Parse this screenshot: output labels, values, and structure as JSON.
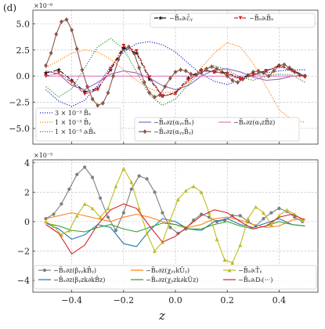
{
  "figure": {
    "panel_label": "(d)",
    "xlabel": "z"
  },
  "chart_data": [
    {
      "type": "line",
      "id": "top",
      "exponent_label": "×10⁻⁶",
      "xlim": [
        -0.55,
        0.55
      ],
      "ylim": [
        -6.5,
        6.3
      ],
      "xticks": [
        -0.4,
        -0.2,
        0.0,
        0.2,
        0.4
      ],
      "yticks": [
        -5.0,
        -2.5,
        0.0,
        2.5,
        5.0
      ],
      "ytick_labels": [
        "−5.0",
        "−2.5",
        "0.0",
        "2.5",
        "5.0"
      ],
      "grid": true,
      "legends": [
        {
          "position": "top-right",
          "ncol": 2,
          "entries": [
            "−B̄ₓ∂ₜℰ̄ᵧ",
            "−B̄ₓ∂ₜB̄ₓ"
          ]
        },
        {
          "position": "bottom-left",
          "ncol": 1,
          "entries": [
            "3 × 10⁻³ B̄ₓ",
            "1 × 10⁻³ B̄ᵧ",
            "1 × 10⁻³ ∂ₜB̄ₓ"
          ]
        },
        {
          "position": "bottom-center",
          "ncol": 2,
          "entries": [
            "−B̄ₓ∂z(αᵧₓB̄ₓ)",
            "−B̄ₓ∂z(αᵧzB̄z)",
            "−B̄ₓ∂z(αᵧᵧB̄ᵧ)"
          ]
        }
      ],
      "series": [
        {
          "name": "3 × 10⁻³ B̄ₓ",
          "color": "#1f1fd0",
          "style": "dotted",
          "marker": "none",
          "x": [
            -0.5,
            -0.45,
            -0.4,
            -0.35,
            -0.3,
            -0.25,
            -0.2,
            -0.15,
            -0.1,
            -0.05,
            0,
            0.05,
            0.1,
            0.15,
            0.2,
            0.25,
            0.3,
            0.35,
            0.4,
            0.45,
            0.5
          ],
          "y": [
            -1.3,
            -2.4,
            -2.9,
            -2.3,
            -0.9,
            0.9,
            2.3,
            3.1,
            3.3,
            3.0,
            2.3,
            1.2,
            0.2,
            -0.5,
            -0.8,
            -0.4,
            0.1,
            0.3,
            0.5,
            0.6,
            0.6
          ]
        },
        {
          "name": "1 × 10⁻³ B̄ᵧ",
          "color": "#ff7f0e",
          "style": "dotted",
          "marker": "none",
          "x": [
            -0.5,
            -0.45,
            -0.4,
            -0.35,
            -0.3,
            -0.25,
            -0.2,
            -0.15,
            -0.1,
            -0.05,
            0,
            0.05,
            0.1,
            0.15,
            0.2,
            0.25,
            0.3,
            0.35,
            0.4,
            0.45,
            0.5
          ],
          "y": [
            0.8,
            1.5,
            2.2,
            2.5,
            2.3,
            1.6,
            0.6,
            -0.4,
            -1.2,
            -1.6,
            -1.5,
            -0.6,
            0.8,
            2.2,
            3.2,
            2.8,
            1.2,
            -1.0,
            -3.2,
            -4.2,
            -4.4
          ]
        },
        {
          "name": "1 × 10⁻³ ∂ₜB̄ₓ",
          "color": "#228b22",
          "style": "dotted",
          "marker": "none",
          "x": [
            -0.5,
            -0.45,
            -0.4,
            -0.35,
            -0.3,
            -0.25,
            -0.2,
            -0.15,
            -0.1,
            -0.05,
            0,
            0.05,
            0.1,
            0.15,
            0.2,
            0.25,
            0.3,
            0.35,
            0.4,
            0.45,
            0.5
          ],
          "y": [
            -1.0,
            -2.0,
            -1.2,
            0.8,
            2.8,
            3.6,
            2.6,
            0.4,
            -1.8,
            -2.8,
            -2.2,
            -0.8,
            0.6,
            1.0,
            0.6,
            -0.1,
            -0.4,
            0.0,
            0.2,
            0.1,
            -0.6
          ]
        },
        {
          "name": "−B̄ₓ∂z(αᵧₓB̄ₓ)",
          "color": "#9467bd",
          "style": "solid",
          "marker": "none",
          "x": [
            -0.5,
            -0.45,
            -0.4,
            -0.35,
            -0.3,
            -0.25,
            -0.2,
            -0.15,
            -0.1,
            -0.05,
            0,
            0.05,
            0.1,
            0.15,
            0.2,
            0.25,
            0.3,
            0.35,
            0.4,
            0.45,
            0.5
          ],
          "y": [
            0.5,
            0.2,
            -0.9,
            -1.3,
            -0.6,
            0.2,
            0.5,
            0.3,
            -0.2,
            -0.9,
            -1.3,
            -0.9,
            0.0,
            0.6,
            0.7,
            0.4,
            -0.1,
            -0.4,
            -0.3,
            0.0,
            0.1
          ]
        },
        {
          "name": "−B̄ₓ∂z(αᵧzB̄z)",
          "color": "#e377c2",
          "style": "solid",
          "marker": "none",
          "x": [
            -0.5,
            -0.4,
            -0.3,
            -0.2,
            -0.1,
            0,
            0.1,
            0.2,
            0.3,
            0.4,
            0.5
          ],
          "y": [
            0.0,
            0.0,
            0.0,
            0.0,
            0.0,
            0.0,
            0.0,
            0.0,
            0.0,
            0.0,
            0.0
          ]
        },
        {
          "name": "−B̄ₓ∂z(αᵧᵧB̄ᵧ)",
          "color": "#8c564b",
          "style": "solid",
          "marker": "diamond",
          "x": [
            -0.5,
            -0.48,
            -0.46,
            -0.44,
            -0.42,
            -0.4,
            -0.38,
            -0.36,
            -0.34,
            -0.32,
            -0.3,
            -0.28,
            -0.26,
            -0.24,
            -0.22,
            -0.2,
            -0.18,
            -0.16,
            -0.14,
            -0.12,
            -0.1,
            -0.08,
            -0.06,
            -0.04,
            -0.02,
            0,
            0.02,
            0.04,
            0.06,
            0.08,
            0.1,
            0.12,
            0.14,
            0.16,
            0.18,
            0.2,
            0.22,
            0.24,
            0.26,
            0.28,
            0.3,
            0.32,
            0.34,
            0.36,
            0.38,
            0.4,
            0.42,
            0.44,
            0.46,
            0.48,
            0.5
          ],
          "y": [
            1.0,
            2.2,
            4.0,
            5.2,
            5.4,
            4.4,
            2.6,
            0.6,
            -1.0,
            -2.2,
            -2.8,
            -2.6,
            -1.6,
            0.0,
            1.6,
            2.6,
            2.8,
            2.2,
            0.8,
            -0.6,
            -1.6,
            -2.0,
            -1.8,
            -1.0,
            -0.2,
            0.4,
            0.6,
            0.5,
            0.2,
            0.1,
            0.3,
            0.7,
            0.9,
            0.7,
            0.4,
            0.0,
            -0.4,
            -0.6,
            -0.3,
            0.1,
            0.4,
            0.5,
            0.3,
            0.0,
            0.5,
            1.0,
            1.1,
            0.8,
            0.4,
            0.1,
            0.0
          ]
        },
        {
          "name": "−B̄ₓ∂ₜℰ̄ᵧ",
          "color": "#111111",
          "style": "dashdot",
          "marker": "star",
          "x": [
            -0.5,
            -0.45,
            -0.4,
            -0.35,
            -0.3,
            -0.25,
            -0.2,
            -0.15,
            -0.1,
            -0.05,
            0,
            0.05,
            0.1,
            0.15,
            0.2,
            0.25,
            0.3,
            0.35,
            0.4,
            0.45,
            0.5
          ],
          "y": [
            0.3,
            0.6,
            -0.4,
            -1.5,
            -1.2,
            0.6,
            2.7,
            2.2,
            -0.3,
            -1.9,
            -1.6,
            -0.2,
            0.6,
            0.4,
            0.3,
            -0.2,
            0.2,
            0.5,
            1.0,
            0.6,
            0.0
          ]
        },
        {
          "name": "−B̄ₓ∂ₜB̄ₓ",
          "color": "#d62728",
          "style": "dashdot",
          "marker": "tri",
          "x": [
            -0.5,
            -0.45,
            -0.4,
            -0.35,
            -0.3,
            -0.25,
            -0.2,
            -0.15,
            -0.1,
            -0.05,
            0,
            0.05,
            0.1,
            0.15,
            0.2,
            0.25,
            0.3,
            0.35,
            0.4,
            0.45,
            0.5
          ],
          "y": [
            0.0,
            0.3,
            -0.6,
            -1.7,
            -1.3,
            0.7,
            2.9,
            2.4,
            -0.1,
            -1.9,
            -1.7,
            -0.4,
            0.5,
            0.4,
            0.2,
            -0.3,
            0.1,
            0.5,
            0.9,
            0.5,
            -0.1
          ]
        }
      ]
    },
    {
      "type": "line",
      "id": "bottom",
      "exponent_label": "×10⁻⁵",
      "xlim": [
        -0.55,
        0.55
      ],
      "ylim": [
        -4.8,
        4.2
      ],
      "xticks": [
        -0.4,
        -0.2,
        0.0,
        0.2,
        0.4
      ],
      "xtick_labels": [
        "−0.4",
        "−0.2",
        "0.0",
        "0.2",
        "0.4"
      ],
      "yticks": [
        -4,
        -2,
        0,
        2,
        4
      ],
      "ytick_labels": [
        "−4",
        "−2",
        "0",
        "2",
        "4"
      ],
      "grid": true,
      "legends": [
        {
          "position": "bottom",
          "ncol": 3,
          "entries": [
            "−B̄ₓ∂z(βᵧᵧkB̄ᵧ)",
            "−B̄ₓ∂z(χᵧᵧkŪᵧ)",
            "−B̄ₓ∂ₜT̄ᵧ",
            "−B̄ₓ∂z(βᵧzk∂kB̄z)",
            "−B̄ₓ∂z(χᵧzk∂kŪz)",
            "−B̄ₓ∂ₜDₜ(···)"
          ]
        }
      ],
      "series": [
        {
          "name": "−B̄ₓ∂z(βᵧᵧkB̄ᵧ)",
          "color": "#7f7f7f",
          "style": "solid",
          "marker": "circle",
          "x": [
            -0.5,
            -0.47,
            -0.44,
            -0.41,
            -0.38,
            -0.35,
            -0.32,
            -0.29,
            -0.26,
            -0.23,
            -0.2,
            -0.17,
            -0.14,
            -0.11,
            -0.08,
            -0.05,
            -0.02,
            0.01,
            0.04,
            0.07,
            0.1,
            0.13,
            0.16,
            0.19,
            0.22,
            0.25,
            0.28,
            0.31,
            0.34,
            0.37,
            0.4,
            0.43,
            0.46,
            0.49
          ],
          "y": [
            0.2,
            0.5,
            1.2,
            2.2,
            3.2,
            3.7,
            3.0,
            1.6,
            0.3,
            -0.6,
            0.6,
            2.2,
            3.1,
            2.9,
            2.0,
            0.6,
            -0.4,
            -0.8,
            -0.5,
            0.1,
            0.5,
            0.3,
            0.0,
            0.1,
            0.4,
            0.4,
            0.0,
            -0.3,
            0.2,
            0.6,
            0.9,
            0.7,
            0.3,
            0.0
          ]
        },
        {
          "name": "−B̄ₓ∂z(βᵧzk∂kB̄z)",
          "color": "#1f77b4",
          "style": "solid",
          "marker": "none",
          "x": [
            -0.5,
            -0.45,
            -0.4,
            -0.35,
            -0.3,
            -0.25,
            -0.2,
            -0.15,
            -0.1,
            -0.05,
            0,
            0.05,
            0.1,
            0.15,
            0.2,
            0.25,
            0.3,
            0.35,
            0.4,
            0.45,
            0.5
          ],
          "y": [
            -0.1,
            -0.5,
            -1.2,
            -0.9,
            -0.2,
            -0.4,
            -1.5,
            -1.7,
            -0.6,
            0.2,
            0.0,
            -0.5,
            -0.6,
            0.0,
            0.2,
            -0.2,
            -0.4,
            -0.1,
            0.2,
            -0.2,
            -0.3
          ]
        },
        {
          "name": "−B̄ₓ∂z(χᵧᵧkŪᵧ)",
          "color": "#ff7f0e",
          "style": "solid",
          "marker": "none",
          "x": [
            -0.5,
            -0.45,
            -0.4,
            -0.35,
            -0.3,
            -0.25,
            -0.2,
            -0.15,
            -0.1,
            -0.05,
            0,
            0.05,
            0.1,
            0.15,
            0.2,
            0.25,
            0.3,
            0.35,
            0.4,
            0.45,
            0.5
          ],
          "y": [
            0.2,
            0.4,
            0.6,
            0.4,
            0.2,
            0.0,
            0.3,
            0.5,
            0.3,
            0.0,
            -0.2,
            -0.4,
            -0.2,
            0.2,
            0.3,
            0.1,
            -0.2,
            -0.4,
            -0.3,
            0.1,
            0.2
          ]
        },
        {
          "name": "−B̄ₓ∂z(χᵧzk∂kŪz)",
          "color": "#2ca02c",
          "style": "solid",
          "marker": "none",
          "x": [
            -0.5,
            -0.45,
            -0.4,
            -0.35,
            -0.3,
            -0.25,
            -0.2,
            -0.15,
            -0.1,
            -0.05,
            0,
            0.05,
            0.1,
            0.15,
            0.2,
            0.25,
            0.3,
            0.35,
            0.4,
            0.45,
            0.5
          ],
          "y": [
            -0.1,
            -0.3,
            -0.6,
            -0.7,
            -0.4,
            -0.2,
            -0.5,
            -0.7,
            -0.4,
            -0.1,
            -0.2,
            -0.5,
            -0.5,
            -0.2,
            0.0,
            -0.3,
            -0.5,
            -0.3,
            0.0,
            -0.2,
            -0.3
          ]
        },
        {
          "name": "−B̄ₓ∂ₜT̄ᵧ",
          "color": "#bcbd22",
          "style": "solid",
          "marker": "triangle",
          "x": [
            -0.5,
            -0.47,
            -0.44,
            -0.41,
            -0.38,
            -0.35,
            -0.32,
            -0.29,
            -0.26,
            -0.23,
            -0.2,
            -0.17,
            -0.14,
            -0.11,
            -0.08,
            -0.05,
            -0.02,
            0.01,
            0.04,
            0.07,
            0.1,
            0.13,
            0.16,
            0.19,
            0.22,
            0.25,
            0.28,
            0.31,
            0.34,
            0.37,
            0.4,
            0.43,
            0.46,
            0.49
          ],
          "y": [
            0.0,
            -0.3,
            -0.9,
            -0.6,
            0.4,
            1.2,
            0.9,
            0.3,
            0.9,
            2.4,
            3.6,
            2.7,
            0.9,
            -0.8,
            -2.0,
            -1.4,
            0.1,
            1.5,
            2.1,
            2.4,
            2.0,
            0.6,
            -1.2,
            -2.6,
            -2.8,
            -1.6,
            0.2,
            1.0,
            0.6,
            -0.2,
            0.4,
            0.8,
            0.5,
            0.1
          ]
        },
        {
          "name": "−B̄ₓ∂ₜDₜ(···)",
          "color": "#d62728",
          "style": "solid",
          "marker": "none",
          "x": [
            -0.5,
            -0.45,
            -0.4,
            -0.35,
            -0.3,
            -0.25,
            -0.2,
            -0.15,
            -0.1,
            -0.05,
            0,
            0.05,
            0.1,
            0.15,
            0.2,
            0.25,
            0.3,
            0.35,
            0.4,
            0.45,
            0.5
          ],
          "y": [
            -0.2,
            -0.8,
            -2.2,
            -1.6,
            -0.2,
            0.8,
            1.2,
            0.9,
            -0.3,
            -1.4,
            -1.0,
            -0.3,
            0.4,
            0.8,
            0.6,
            0.0,
            -0.5,
            -0.3,
            0.3,
            0.5,
            0.1
          ]
        }
      ]
    }
  ]
}
